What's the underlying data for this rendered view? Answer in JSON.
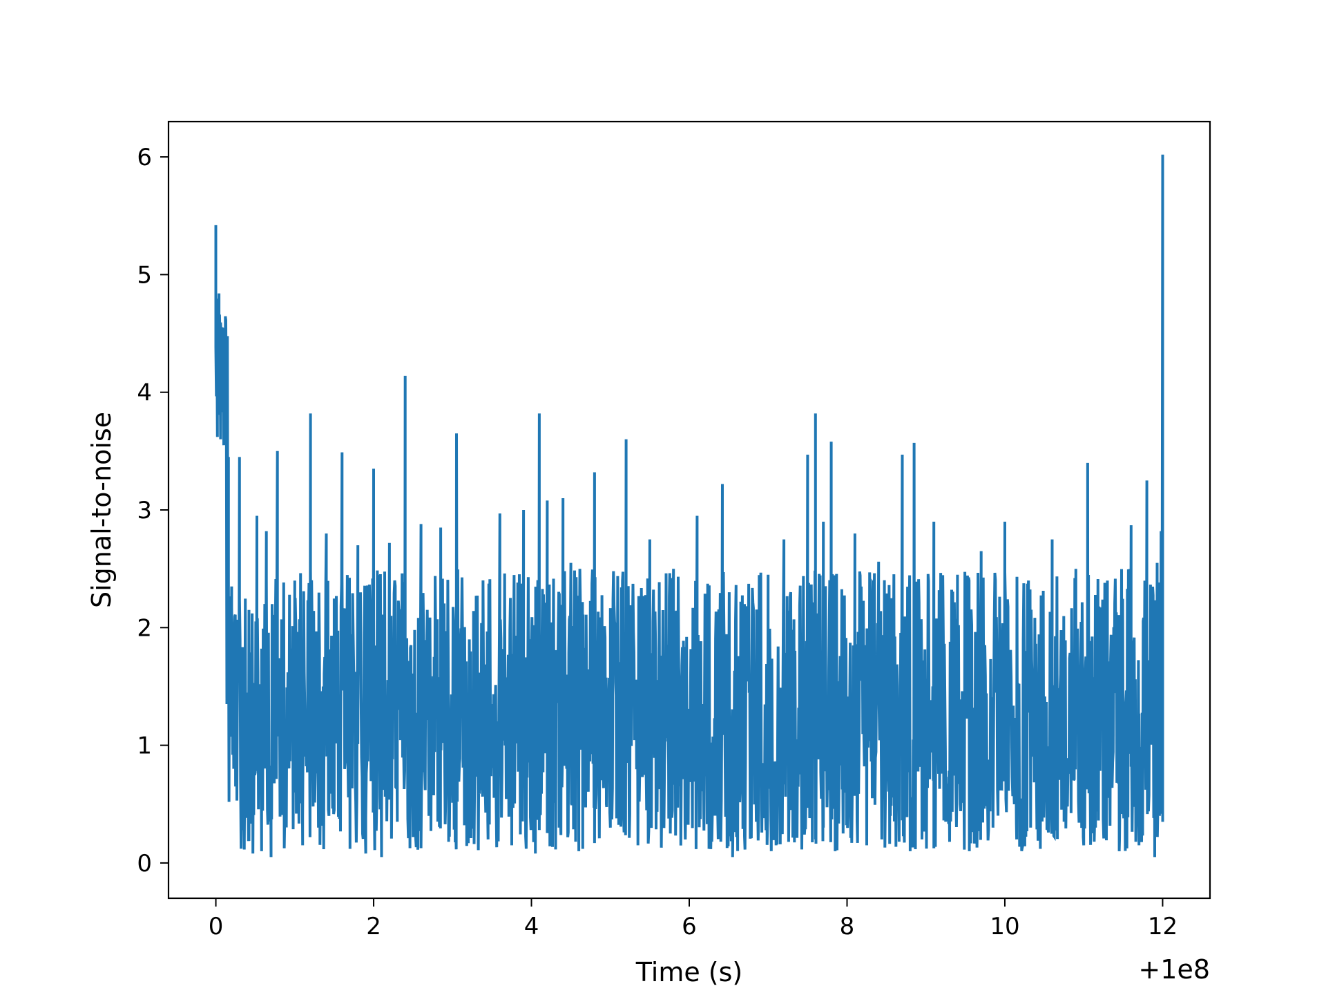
{
  "chart_data": {
    "type": "line",
    "title": "",
    "xlabel": "Time (s)",
    "ylabel": "Signal-to-noise",
    "x_offset_label": "+1e8",
    "xlim": [
      -0.6,
      12.6
    ],
    "ylim": [
      -0.3,
      6.3
    ],
    "xticks": [
      0,
      2,
      4,
      6,
      8,
      10,
      12
    ],
    "xtick_labels": [
      "0",
      "2",
      "4",
      "6",
      "8",
      "10",
      "12"
    ],
    "yticks": [
      0,
      1,
      2,
      3,
      4,
      5,
      6
    ],
    "ytick_labels": [
      "0",
      "1",
      "2",
      "3",
      "4",
      "5",
      "6"
    ],
    "grid": false,
    "series": [
      {
        "color": "#1f77b4",
        "x_range": [
          0,
          12
        ],
        "points": [
          [
            0.0,
            5.42
          ],
          [
            0.02,
            3.62
          ],
          [
            0.04,
            4.84
          ],
          [
            0.06,
            3.6
          ],
          [
            0.08,
            4.42
          ],
          [
            0.1,
            3.55
          ],
          [
            0.12,
            4.04
          ],
          [
            0.14,
            1.35
          ],
          [
            0.16,
            3.45
          ],
          [
            0.18,
            1.15
          ],
          [
            0.2,
            2.35
          ],
          [
            0.25,
            0.65
          ],
          [
            0.3,
            3.45
          ],
          [
            0.35,
            0.28
          ],
          [
            0.42,
            2.15
          ],
          [
            0.47,
            0.08
          ],
          [
            0.52,
            2.95
          ],
          [
            0.58,
            0.1
          ],
          [
            0.64,
            2.82
          ],
          [
            0.7,
            0.05
          ],
          [
            0.78,
            3.5
          ],
          [
            0.85,
            0.42
          ],
          [
            1.0,
            2.4
          ],
          [
            1.1,
            0.15
          ],
          [
            1.2,
            3.82
          ],
          [
            1.3,
            0.3
          ],
          [
            1.4,
            2.8
          ],
          [
            1.5,
            0.45
          ],
          [
            1.6,
            3.49
          ],
          [
            1.7,
            0.12
          ],
          [
            1.8,
            2.7
          ],
          [
            1.9,
            0.08
          ],
          [
            2.0,
            3.35
          ],
          [
            2.1,
            0.05
          ],
          [
            2.2,
            2.72
          ],
          [
            2.3,
            0.35
          ],
          [
            2.4,
            4.14
          ],
          [
            2.5,
            0.22
          ],
          [
            2.6,
            2.88
          ],
          [
            2.7,
            0.4
          ],
          [
            2.85,
            2.85
          ],
          [
            2.95,
            0.18
          ],
          [
            3.05,
            3.65
          ],
          [
            3.15,
            0.32
          ],
          [
            3.3,
            2.27
          ],
          [
            3.45,
            0.2
          ],
          [
            3.6,
            2.97
          ],
          [
            3.75,
            0.15
          ],
          [
            3.9,
            3.0
          ],
          [
            4.05,
            0.08
          ],
          [
            4.2,
            3.08
          ],
          [
            4.35,
            0.3
          ],
          [
            4.5,
            2.55
          ],
          [
            4.65,
            0.12
          ],
          [
            4.8,
            3.32
          ],
          [
            4.95,
            0.5
          ],
          [
            4.1,
            3.82
          ],
          [
            4.25,
            0.2
          ],
          [
            4.4,
            3.1
          ],
          [
            4.6,
            0.1
          ],
          [
            4.8,
            2.65
          ],
          [
            5.0,
            0.3
          ],
          [
            5.2,
            3.6
          ],
          [
            5.35,
            0.15
          ],
          [
            5.5,
            2.75
          ],
          [
            5.65,
            0.4
          ],
          [
            5.8,
            2.5
          ],
          [
            5.95,
            0.2
          ],
          [
            6.1,
            2.95
          ],
          [
            6.25,
            0.12
          ],
          [
            6.42,
            3.22
          ],
          [
            6.55,
            0.05
          ],
          [
            6.7,
            2.2
          ],
          [
            6.85,
            0.35
          ],
          [
            7.0,
            2.45
          ],
          [
            7.1,
            0.15
          ],
          [
            7.2,
            2.75
          ],
          [
            7.35,
            0.5
          ],
          [
            7.5,
            3.47
          ],
          [
            7.6,
            0.2
          ],
          [
            7.7,
            2.9
          ],
          [
            7.85,
            0.1
          ],
          [
            7.6,
            3.82
          ],
          [
            7.7,
            0.3
          ],
          [
            7.8,
            3.58
          ],
          [
            7.95,
            0.25
          ],
          [
            8.1,
            2.8
          ],
          [
            8.25,
            0.15
          ],
          [
            8.4,
            2.56
          ],
          [
            8.55,
            0.4
          ],
          [
            8.7,
            3.47
          ],
          [
            8.8,
            0.1
          ],
          [
            8.85,
            3.57
          ],
          [
            8.95,
            0.2
          ],
          [
            9.1,
            2.9
          ],
          [
            9.25,
            0.35
          ],
          [
            9.4,
            2.45
          ],
          [
            9.55,
            0.1
          ],
          [
            9.7,
            2.65
          ],
          [
            9.85,
            0.3
          ],
          [
            10.0,
            2.9
          ],
          [
            10.15,
            0.2
          ],
          [
            10.3,
            2.4
          ],
          [
            10.45,
            0.12
          ],
          [
            10.6,
            2.75
          ],
          [
            10.75,
            0.35
          ],
          [
            10.9,
            2.5
          ],
          [
            11.0,
            0.15
          ],
          [
            11.05,
            3.4
          ],
          [
            11.15,
            0.3
          ],
          [
            11.3,
            2.4
          ],
          [
            11.45,
            0.1
          ],
          [
            11.6,
            2.87
          ],
          [
            11.7,
            0.15
          ],
          [
            11.8,
            3.25
          ],
          [
            11.9,
            0.05
          ],
          [
            11.93,
            2.55
          ],
          [
            11.96,
            0.4
          ],
          [
            11.98,
            2.82
          ],
          [
            12.0,
            6.02
          ],
          [
            12.0,
            5.88
          ]
        ]
      }
    ]
  }
}
